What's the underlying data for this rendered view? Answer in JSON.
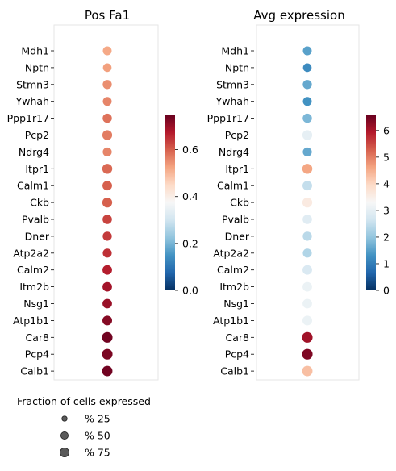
{
  "chart_data": [
    {
      "type": "scatter",
      "title": "Pos Fa1",
      "categories": [
        "Mdh1",
        "Nptn",
        "Stmn3",
        "Ywhah",
        "Ppp1r17",
        "Pcp2",
        "Ndrg4",
        "Itpr1",
        "Calm1",
        "Ckb",
        "Pvalb",
        "Dner",
        "Atp2a2",
        "Calm2",
        "Itm2b",
        "Nsg1",
        "Atp1b1",
        "Car8",
        "Pcp4",
        "Calb1"
      ],
      "color_values": [
        0.52,
        0.53,
        0.55,
        0.56,
        0.58,
        0.57,
        0.56,
        0.59,
        0.6,
        0.6,
        0.63,
        0.64,
        0.65,
        0.67,
        0.69,
        0.7,
        0.72,
        0.74,
        0.73,
        0.74
      ],
      "size_values": [
        58,
        55,
        62,
        58,
        63,
        72,
        60,
        75,
        68,
        73,
        65,
        62,
        60,
        68,
        67,
        67,
        70,
        83,
        83,
        80
      ],
      "colorbar": {
        "min": 0.0,
        "max": 0.75,
        "ticks": [
          "0.0",
          "0.2",
          "0.4",
          "0.6"
        ],
        "tick_values": [
          0,
          0.2,
          0.4,
          0.6
        ],
        "colormap": "RdBu_r"
      }
    },
    {
      "type": "scatter",
      "title": "Avg expression",
      "categories": [
        "Mdh1",
        "Nptn",
        "Stmn3",
        "Ywhah",
        "Ppp1r17",
        "Pcp2",
        "Ndrg4",
        "Itpr1",
        "Calm1",
        "Ckb",
        "Pvalb",
        "Dner",
        "Atp2a2",
        "Calm2",
        "Itm2b",
        "Nsg1",
        "Atp1b1",
        "Car8",
        "Pcp4",
        "Calb1"
      ],
      "color_values": [
        1.5,
        1.2,
        1.6,
        1.3,
        1.8,
        3.0,
        1.6,
        4.6,
        2.5,
        3.6,
        2.9,
        2.4,
        2.3,
        2.8,
        3.1,
        3.1,
        3.1,
        6.1,
        6.4,
        4.3
      ],
      "size_values": [
        58,
        55,
        62,
        58,
        63,
        72,
        60,
        75,
        68,
        73,
        65,
        62,
        60,
        68,
        67,
        67,
        70,
        83,
        83,
        80
      ],
      "colorbar": {
        "min": 0,
        "max": 6.6,
        "ticks": [
          "0",
          "1",
          "2",
          "3",
          "4",
          "5",
          "6"
        ],
        "tick_values": [
          0,
          1,
          2,
          3,
          4,
          5,
          6
        ],
        "colormap": "RdBu_r"
      }
    }
  ],
  "legend": {
    "title": "Fraction of cells expressed",
    "items": [
      {
        "label": "% 25",
        "size_value": 25
      },
      {
        "label": "% 50",
        "size_value": 50
      },
      {
        "label": "% 75",
        "size_value": 75
      }
    ]
  }
}
